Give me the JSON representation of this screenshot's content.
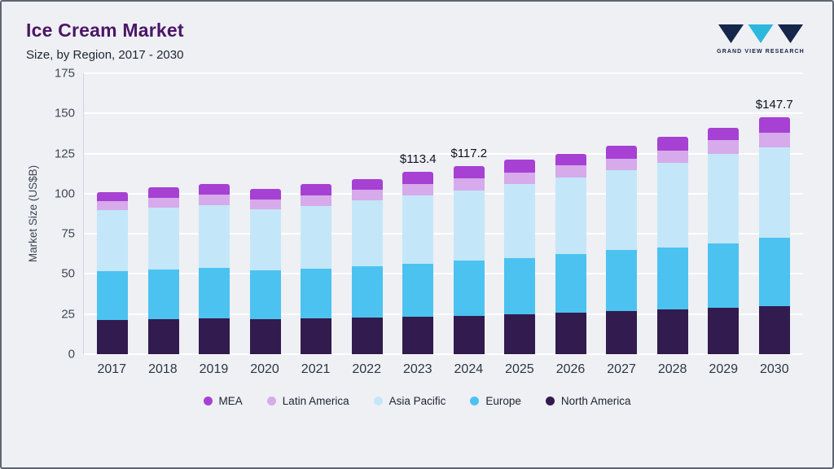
{
  "header": {
    "title": "Ice Cream Market",
    "subtitle": "Size, by Region, 2017 - 2030"
  },
  "logo": {
    "text": "GRAND VIEW RESEARCH",
    "navy": "#16254a",
    "cyan": "#2cb8dd"
  },
  "chart_data": {
    "type": "stacked-bar",
    "title": "Ice Cream Market",
    "subtitle": "Size, by Region, 2017 - 2030",
    "ylabel": "Market Size (US$B)",
    "ylim": [
      0,
      175
    ],
    "yticks": [
      0,
      25,
      50,
      75,
      100,
      125,
      150,
      175
    ],
    "grid": true,
    "categories": [
      "2017",
      "2018",
      "2019",
      "2020",
      "2021",
      "2022",
      "2023",
      "2024",
      "2025",
      "2026",
      "2027",
      "2028",
      "2029",
      "2030"
    ],
    "stack_order_bottom_to_top": [
      "North America",
      "Europe",
      "Asia Pacific",
      "Latin America",
      "MEA"
    ],
    "series": [
      {
        "name": "North America",
        "color": "#321b4e",
        "values": [
          21.5,
          22,
          22.5,
          22,
          22.5,
          23,
          23.5,
          24,
          25,
          26,
          27,
          28,
          29,
          30
        ]
      },
      {
        "name": "Europe",
        "color": "#4cc2f1",
        "values": [
          30,
          31,
          31.5,
          30.5,
          31,
          32,
          33,
          34.5,
          35,
          36.5,
          38,
          38.5,
          40,
          42.5
        ]
      },
      {
        "name": "Asia Pacific",
        "color": "#c3e7f8",
        "values": [
          38.5,
          38.5,
          39,
          38,
          39,
          41,
          42.5,
          43.5,
          46,
          47.5,
          49.5,
          52.5,
          56,
          56.5
        ]
      },
      {
        "name": "Latin America",
        "color": "#d6aaeb",
        "values": [
          5.5,
          6,
          6.5,
          6,
          6.5,
          6.5,
          7,
          7.5,
          7,
          7.5,
          7.5,
          8,
          8.5,
          9
        ]
      },
      {
        "name": "MEA",
        "color": "#a641d3",
        "values": [
          5.5,
          6.5,
          6.5,
          6.5,
          7,
          6.5,
          7.4,
          7.7,
          8,
          7.5,
          8,
          8.5,
          7.5,
          9.7
        ]
      }
    ],
    "totals": [
      101,
      104,
      106,
      103,
      106,
      109,
      113.4,
      117.2,
      121,
      125,
      130,
      135.5,
      141,
      147.7
    ],
    "annotations": [
      {
        "category": "2023",
        "label": "$113.4"
      },
      {
        "category": "2024",
        "label": "$117.2"
      },
      {
        "category": "2030",
        "label": "$147.7"
      }
    ],
    "legend": [
      "MEA",
      "Latin America",
      "Asia Pacific",
      "Europe",
      "North America"
    ],
    "legend_position": "bottom"
  }
}
